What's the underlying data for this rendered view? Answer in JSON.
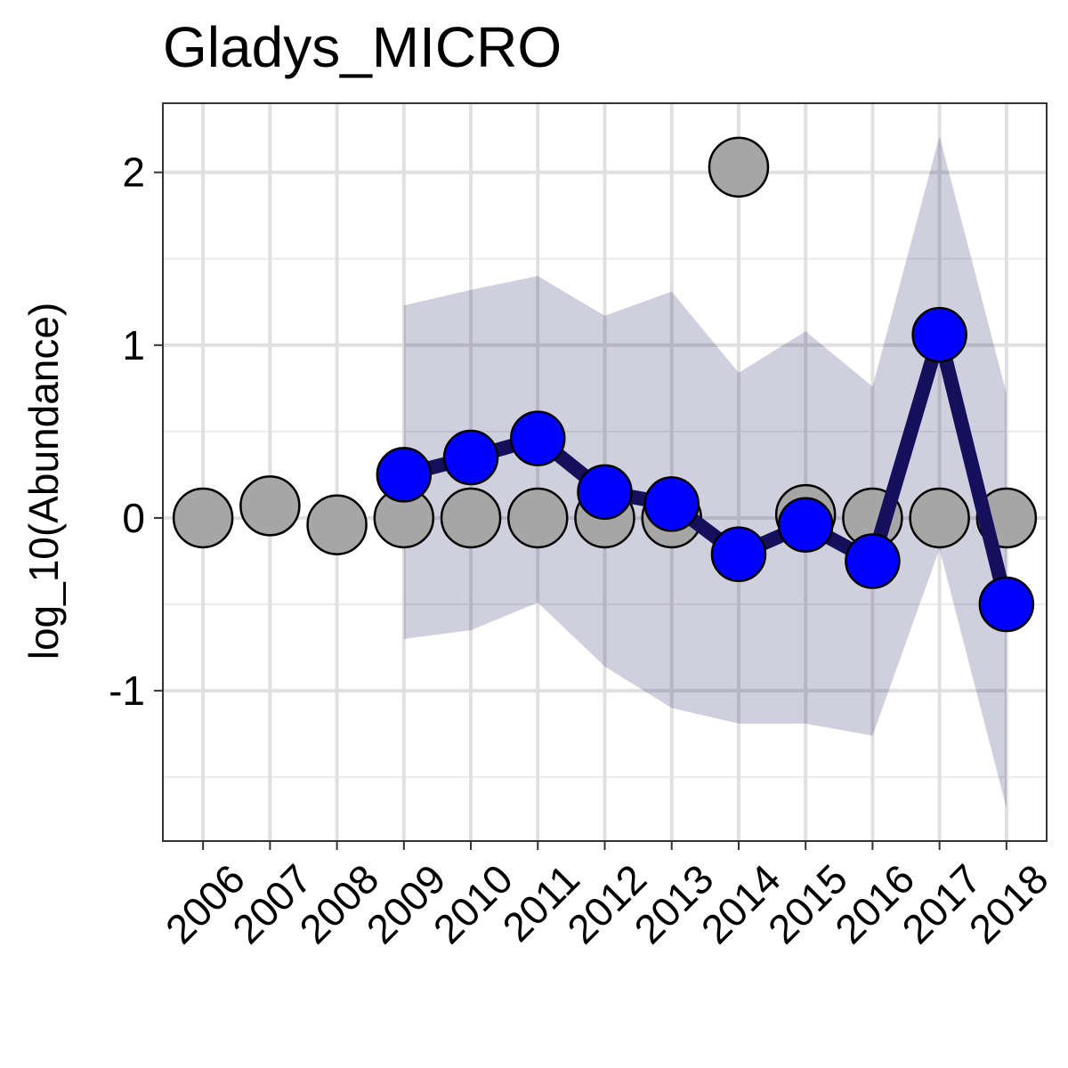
{
  "chart_data": {
    "type": "line",
    "title": "Gladys_MICRO",
    "xlabel": "",
    "ylabel": "log_10(Abundance)",
    "x": [
      2006,
      2007,
      2008,
      2009,
      2010,
      2011,
      2012,
      2013,
      2014,
      2015,
      2016,
      2017,
      2018
    ],
    "x_tick_labels": [
      "2006",
      "2007",
      "2008",
      "2009",
      "2010",
      "2011",
      "2012",
      "2013",
      "2014",
      "2015",
      "2016",
      "2017",
      "2018"
    ],
    "y_ticks": [
      -1,
      0,
      1,
      2
    ],
    "y_tick_labels": [
      "-1",
      "0",
      "1",
      "2"
    ],
    "ylim": [
      -1.87,
      2.4
    ],
    "xlim": [
      2005.4,
      2018.6
    ],
    "grid": true,
    "series": [
      {
        "color": "#a6a6a6",
        "marker": "circle",
        "line": false,
        "points": [
          {
            "x": 2006,
            "y": 0.0
          },
          {
            "x": 2007,
            "y": 0.07
          },
          {
            "x": 2008,
            "y": -0.04
          },
          {
            "x": 2009,
            "y": 0.0
          },
          {
            "x": 2010,
            "y": 0.0
          },
          {
            "x": 2011,
            "y": 0.0
          },
          {
            "x": 2012,
            "y": 0.0
          },
          {
            "x": 2013,
            "y": 0.0
          },
          {
            "x": 2014,
            "y": 2.03
          },
          {
            "x": 2015,
            "y": 0.02
          },
          {
            "x": 2016,
            "y": 0.0
          },
          {
            "x": 2017,
            "y": 0.0
          },
          {
            "x": 2018,
            "y": 0.0
          }
        ]
      },
      {
        "color": "#0000ff",
        "line_color": "#14105c",
        "marker": "circle",
        "line": true,
        "points": [
          {
            "x": 2009,
            "y": 0.25
          },
          {
            "x": 2010,
            "y": 0.35
          },
          {
            "x": 2011,
            "y": 0.46
          },
          {
            "x": 2012,
            "y": 0.15
          },
          {
            "x": 2013,
            "y": 0.08
          },
          {
            "x": 2014,
            "y": -0.21
          },
          {
            "x": 2015,
            "y": -0.04
          },
          {
            "x": 2016,
            "y": -0.25
          },
          {
            "x": 2017,
            "y": 1.06
          },
          {
            "x": 2018,
            "y": -0.5
          }
        ],
        "band": {
          "color": "#14105c",
          "opacity": 0.2,
          "lower": [
            -0.7,
            -0.65,
            -0.49,
            -0.86,
            -1.1,
            -1.19,
            -1.19,
            -1.26,
            -0.18,
            -1.68
          ],
          "upper": [
            1.23,
            1.32,
            1.4,
            1.17,
            1.31,
            0.84,
            1.08,
            0.76,
            2.21,
            0.72
          ]
        }
      }
    ]
  }
}
